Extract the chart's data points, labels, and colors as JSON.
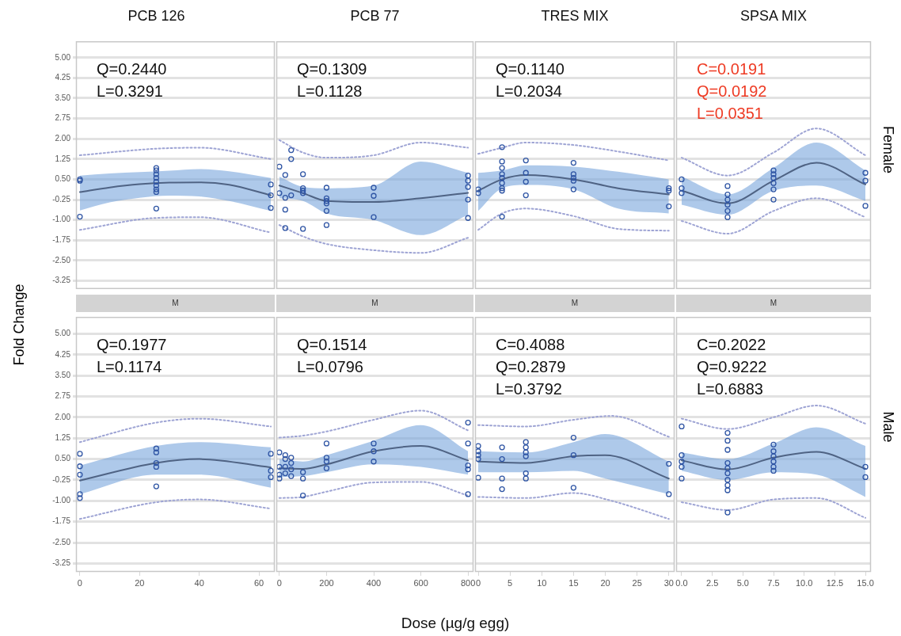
{
  "chart_data": [
    {
      "type": "scatter",
      "title": "PCB 126",
      "ylabel": "Fold Change",
      "xlim": [
        -1.3,
        65.3
      ],
      "xticks": [
        0,
        20,
        40,
        60
      ],
      "ylim": [
        -3.55,
        5.6
      ],
      "yticks": [
        {
          "value": 5,
          "label": "5.00"
        },
        {
          "value": 4.25,
          "label": "4.25"
        },
        {
          "value": 3.5,
          "label": "3.50"
        },
        {
          "value": 2.75,
          "label": "2.75"
        },
        {
          "value": 2,
          "label": "2.00"
        },
        {
          "value": 1.25,
          "label": "1.25"
        },
        {
          "value": 0.5,
          "label": "0.50"
        },
        {
          "value": -0.25,
          "label": "-0.25"
        },
        {
          "value": -1,
          "label": "-1.00"
        },
        {
          "value": -1.75,
          "label": "-1.75"
        },
        {
          "value": -2.5,
          "label": "-2.50"
        },
        {
          "value": -3.25,
          "label": "-3.25"
        }
      ],
      "tick_labels": "y",
      "grid": "y",
      "annotations": [
        "Q=0.2440",
        "L=0.3291"
      ],
      "series": [
        {
          "marker": "circle",
          "color": "#2f55a4",
          "x": [
            0,
            0,
            0,
            25.6,
            25.6,
            25.6,
            25.6,
            25.6,
            25.6,
            25.6,
            25.6,
            25.6,
            64,
            64,
            64
          ],
          "values": [
            0.5,
            0.45,
            -0.88,
            0.92,
            0.83,
            0.69,
            0.55,
            0.41,
            0.27,
            0.13,
            0.03,
            -0.58,
            0.31,
            -0.09,
            -0.56
          ]
        },
        {
          "type": "line",
          "color": "#4f6384",
          "x": [
            0,
            10,
            20,
            30,
            40,
            50,
            64
          ],
          "values": [
            0.03,
            0.2,
            0.32,
            0.38,
            0.39,
            0.3,
            -0.09
          ],
          "lower": [
            -0.65,
            -0.35,
            -0.18,
            -0.1,
            -0.13,
            -0.3,
            -0.67
          ],
          "upper": [
            0.64,
            0.72,
            0.77,
            0.82,
            0.88,
            0.8,
            0.55
          ]
        },
        {
          "type": "line",
          "color": "#9ea4d4",
          "line_style": "dotted",
          "x": [
            0,
            25,
            40,
            64
          ],
          "values": [
            1.39,
            1.63,
            1.67,
            1.25
          ]
        },
        {
          "type": "line",
          "color": "#9ea4d4",
          "line_style": "dotted",
          "x": [
            0,
            25,
            40,
            64
          ],
          "values": [
            -1.37,
            -0.93,
            -0.9,
            -1.47
          ]
        }
      ]
    },
    {
      "type": "scatter",
      "title": "PCB 77",
      "xlim": [
        -13,
        823
      ],
      "xticks": [
        0,
        200,
        400,
        600,
        800
      ],
      "ylim": [
        -3.55,
        5.6
      ],
      "yticks": [
        5,
        4.25,
        3.5,
        2.75,
        2,
        1.25,
        0.5,
        -0.25,
        -1,
        -1.75,
        -2.5,
        -3.25
      ],
      "tick_labels": false,
      "grid": "y",
      "annotations": [
        "Q=0.1309",
        "L=0.1128"
      ],
      "series": [
        {
          "marker": "circle",
          "color": "#2f55a4",
          "x": [
            0,
            0,
            25,
            25,
            25,
            25,
            50,
            50,
            50,
            100,
            100,
            100,
            100,
            100,
            200,
            200,
            200,
            200,
            200,
            200,
            400,
            400,
            400,
            800,
            800,
            800,
            800,
            800
          ],
          "values": [
            0.97,
            -0.01,
            0.66,
            -0.18,
            -0.62,
            -1.3,
            1.58,
            1.25,
            -0.09,
            0.69,
            0.17,
            0.08,
            -0.01,
            -1.33,
            0.19,
            -0.2,
            -0.3,
            -0.39,
            -0.67,
            -1.19,
            0.19,
            -0.11,
            -0.9,
            0.64,
            0.45,
            0.22,
            -0.25,
            -0.93
          ]
        },
        {
          "type": "line",
          "color": "#4f6384",
          "x": [
            0,
            100,
            200,
            400,
            600,
            800
          ],
          "values": [
            0.27,
            -0.01,
            -0.3,
            -0.34,
            -0.2,
            0
          ],
          "lower": [
            -0.2,
            -0.3,
            -0.76,
            -1,
            -1.56,
            -0.81
          ],
          "upper": [
            0.6,
            0.22,
            0.17,
            0.27,
            1.16,
            0.74
          ]
        },
        {
          "type": "line",
          "color": "#9ea4d4",
          "line_style": "dotted",
          "x": [
            0,
            100,
            200,
            400,
            600,
            800
          ],
          "values": [
            1.95,
            1.49,
            1.3,
            1.39,
            1.86,
            1.67
          ]
        },
        {
          "type": "line",
          "color": "#9ea4d4",
          "line_style": "dotted",
          "x": [
            0,
            100,
            200,
            400,
            600,
            800
          ],
          "values": [
            -1.19,
            -1.61,
            -1.89,
            -2.12,
            -2.22,
            -1.66
          ]
        }
      ]
    },
    {
      "type": "scatter",
      "title": "TRES MIX",
      "xlim": [
        -0.5,
        30.9
      ],
      "xticks": [
        0,
        5,
        10,
        15,
        20,
        25,
        30
      ],
      "ylim": [
        -3.55,
        5.6
      ],
      "yticks": [
        5,
        4.25,
        3.5,
        2.75,
        2,
        1.25,
        0.5,
        -0.25,
        -1,
        -1.75,
        -2.5,
        -3.25
      ],
      "tick_labels": false,
      "grid": "y",
      "annotations": [
        "Q=0.1140",
        "L=0.2034"
      ],
      "series": [
        {
          "marker": "circle",
          "color": "#2f55a4",
          "x": [
            0,
            0,
            3.75,
            3.75,
            3.75,
            3.75,
            3.75,
            3.75,
            3.75,
            3.75,
            3.75,
            7.5,
            7.5,
            7.5,
            7.5,
            15,
            15,
            15,
            15,
            15,
            30,
            30,
            30
          ],
          "values": [
            0.13,
            -0.01,
            1.69,
            1.16,
            0.92,
            0.69,
            0.55,
            0.36,
            0.17,
            0.08,
            -0.88,
            1.2,
            0.74,
            0.41,
            -0.09,
            1.11,
            0.69,
            0.55,
            0.45,
            0.13,
            0.17,
            0.08,
            -0.5
          ]
        },
        {
          "type": "line",
          "color": "#4f6384",
          "x": [
            0,
            3.75,
            7.5,
            15,
            22,
            30
          ],
          "values": [
            0.08,
            0.5,
            0.66,
            0.5,
            0.17,
            -0.06
          ],
          "lower": [
            -0.67,
            0.17,
            0.29,
            0.13,
            -0.58,
            -0.76
          ],
          "upper": [
            0.74,
            0.83,
            1.02,
            0.97,
            0.78,
            0.5
          ]
        },
        {
          "type": "line",
          "color": "#9ea4d4",
          "line_style": "dotted",
          "x": [
            0,
            3.75,
            7.5,
            15,
            22,
            30
          ],
          "values": [
            1.44,
            1.67,
            1.86,
            1.77,
            1.53,
            1.2
          ]
        },
        {
          "type": "line",
          "color": "#9ea4d4",
          "line_style": "dotted",
          "x": [
            0,
            3.75,
            7.5,
            15,
            22,
            30
          ],
          "values": [
            -1.37,
            -0.76,
            -0.58,
            -0.86,
            -1.33,
            -1.4
          ]
        }
      ]
    },
    {
      "type": "scatter",
      "title": "SPSA MIX",
      "y2label": "Female",
      "xlim": [
        -0.45,
        15.45
      ],
      "xticks": [
        0,
        2.5,
        5,
        7.5,
        10,
        12.5,
        15
      ],
      "ylim": [
        -3.55,
        5.6
      ],
      "yticks": [
        5,
        4.25,
        3.5,
        2.75,
        2,
        1.25,
        0.5,
        -0.25,
        -1,
        -1.75,
        -2.5,
        -3.25
      ],
      "tick_labels": false,
      "grid": "y",
      "annotations": [
        "C=0.0191",
        "Q=0.0192",
        "L=0.0351"
      ],
      "series": [
        {
          "marker": "circle",
          "color": "#2f55a4",
          "x": [
            0,
            0,
            0,
            3.75,
            3.75,
            3.75,
            3.75,
            3.75,
            3.75,
            7.5,
            7.5,
            7.5,
            7.5,
            7.5,
            7.5,
            15,
            15,
            15
          ],
          "values": [
            0.5,
            0.17,
            -0.01,
            0.25,
            -0.06,
            -0.25,
            -0.44,
            -0.67,
            -0.9,
            0.83,
            0.69,
            0.55,
            0.36,
            0.13,
            -0.25,
            0.74,
            0.45,
            -0.48
          ]
        },
        {
          "type": "line",
          "color": "#4f6384",
          "x": [
            0,
            3.75,
            7.5,
            11,
            15
          ],
          "values": [
            0.08,
            -0.39,
            0.45,
            1.11,
            0.31
          ],
          "lower": [
            -0.44,
            -0.81,
            0.08,
            0.27,
            -0.3
          ],
          "upper": [
            0.6,
            -0.06,
            0.92,
            1.86,
            0.83
          ]
        },
        {
          "type": "line",
          "color": "#9ea4d4",
          "line_style": "dotted",
          "x": [
            0,
            3.75,
            7.5,
            11,
            15
          ],
          "values": [
            1.3,
            0.64,
            1.49,
            2.38,
            1.39
          ]
        },
        {
          "type": "line",
          "color": "#9ea4d4",
          "line_style": "dotted",
          "x": [
            0,
            3.75,
            7.5,
            11,
            15
          ],
          "values": [
            -1.04,
            -1.51,
            -0.67,
            -0.2,
            -0.9
          ]
        }
      ]
    },
    {
      "type": "scatter",
      "subtitle": "M",
      "xlim": [
        -1.3,
        65.3
      ],
      "xticks": [
        0,
        20,
        40,
        60
      ],
      "ylim": [
        -3.55,
        5.6
      ],
      "yticks": [
        {
          "value": 5,
          "label": "5.00"
        },
        {
          "value": 4.25,
          "label": "4.25"
        },
        {
          "value": 3.5,
          "label": "3.50"
        },
        {
          "value": 2.75,
          "label": "2.75"
        },
        {
          "value": 2,
          "label": "2.00"
        },
        {
          "value": 1.25,
          "label": "1.25"
        },
        {
          "value": 0.5,
          "label": "0.50"
        },
        {
          "value": -0.25,
          "label": "-0.25"
        },
        {
          "value": -1,
          "label": "-1.00"
        },
        {
          "value": -1.75,
          "label": "-1.75"
        },
        {
          "value": -2.5,
          "label": "-2.50"
        },
        {
          "value": -3.25,
          "label": "-3.25"
        }
      ],
      "grid": "y",
      "annotations": [
        "Q=0.1977",
        "L=0.1174"
      ],
      "series": [
        {
          "marker": "circle",
          "color": "#2f55a4",
          "x": [
            0,
            0,
            0,
            0,
            0,
            25.6,
            25.6,
            25.6,
            25.6,
            25.6,
            64,
            64,
            64
          ],
          "values": [
            0.69,
            0.24,
            -0.06,
            -0.76,
            -0.9,
            0.88,
            0.74,
            0.36,
            0.22,
            -0.48,
            0.69,
            0.08,
            -0.15
          ]
        },
        {
          "type": "line",
          "color": "#4f6384",
          "x": [
            0,
            25.6,
            40,
            64
          ],
          "values": [
            -0.27,
            0.36,
            0.5,
            0.2
          ],
          "lower": [
            -0.76,
            -0.06,
            -0.06,
            -0.53
          ],
          "upper": [
            0.27,
            0.97,
            1.11,
            0.92
          ]
        },
        {
          "type": "line",
          "color": "#9ea4d4",
          "line_style": "dotted",
          "x": [
            0,
            25.6,
            40,
            64
          ],
          "values": [
            1.11,
            1.81,
            1.95,
            1.67
          ]
        },
        {
          "type": "line",
          "color": "#9ea4d4",
          "line_style": "dotted",
          "x": [
            0,
            25.6,
            40,
            64
          ],
          "values": [
            -1.65,
            -1.05,
            -0.95,
            -1.28
          ]
        }
      ]
    },
    {
      "type": "scatter",
      "subtitle": "M",
      "xlabel": "Dose (µg/g egg)",
      "xlim": [
        -13,
        823
      ],
      "xticks": [
        0,
        200,
        400,
        600,
        800
      ],
      "ylim": [
        -3.55,
        5.6
      ],
      "yticks": [
        5,
        4.25,
        3.5,
        2.75,
        2,
        1.25,
        0.5,
        -0.25,
        -1,
        -1.75,
        -2.5,
        -3.25
      ],
      "tick_labels": "x",
      "grid": "y",
      "annotations": [
        "Q=0.1514",
        "L=0.0796"
      ],
      "series": [
        {
          "marker": "circle",
          "color": "#2f55a4",
          "x": [
            0,
            0,
            0,
            0,
            25,
            25,
            25,
            25,
            50,
            50,
            50,
            50,
            100,
            100,
            100,
            200,
            200,
            200,
            200,
            400,
            400,
            400,
            800,
            800,
            800,
            800,
            800
          ],
          "values": [
            0.74,
            0.22,
            -0.06,
            -0.2,
            0.64,
            0.5,
            0.22,
            -0.01,
            0.55,
            0.36,
            0.13,
            -0.11,
            0.03,
            -0.2,
            -0.81,
            1.06,
            0.55,
            0.41,
            0.17,
            1.06,
            0.78,
            0.41,
            1.81,
            1.06,
            0.27,
            0.13,
            -0.76
          ]
        },
        {
          "type": "line",
          "color": "#4f6384",
          "x": [
            0,
            100,
            200,
            400,
            600,
            800
          ],
          "values": [
            0.17,
            0.15,
            0.31,
            0.78,
            0.97,
            0.45
          ],
          "lower": [
            -0.15,
            -0.11,
            0.03,
            0.31,
            0.22,
            -0.06
          ],
          "upper": [
            0.5,
            0.41,
            0.64,
            1.16,
            1.72,
            0.78
          ]
        },
        {
          "type": "line",
          "color": "#9ea4d4",
          "line_style": "dotted",
          "x": [
            0,
            100,
            200,
            400,
            600,
            800
          ],
          "values": [
            1.27,
            1.34,
            1.49,
            1.91,
            2.24,
            1.53
          ]
        },
        {
          "type": "line",
          "color": "#9ea4d4",
          "line_style": "dotted",
          "x": [
            0,
            100,
            200,
            400,
            600,
            800
          ],
          "values": [
            -0.9,
            -0.86,
            -0.67,
            -0.34,
            -0.32,
            -0.81
          ]
        }
      ]
    },
    {
      "type": "scatter",
      "subtitle": "M",
      "xlim": [
        -0.5,
        30.9
      ],
      "xticks": [
        0,
        5,
        10,
        15,
        20,
        25,
        30
      ],
      "ylim": [
        -3.55,
        5.6
      ],
      "yticks": [
        5,
        4.25,
        3.5,
        2.75,
        2,
        1.25,
        0.5,
        -0.25,
        -1,
        -1.75,
        -2.5,
        -3.25
      ],
      "tick_labels": "x",
      "grid": "y",
      "annotations": [
        "C=0.4088",
        "Q=0.2879",
        "L=0.3792"
      ],
      "series": [
        {
          "marker": "circle",
          "color": "#2f55a4",
          "x": [
            0,
            0,
            0,
            0,
            0,
            3.75,
            3.75,
            3.75,
            3.75,
            7.5,
            7.5,
            7.5,
            7.5,
            7.5,
            7.5,
            15,
            15,
            15,
            30,
            30
          ],
          "values": [
            0.97,
            0.78,
            0.64,
            0.5,
            -0.17,
            0.92,
            0.5,
            -0.2,
            -0.58,
            1.11,
            0.92,
            0.74,
            0.6,
            -0.01,
            -0.2,
            1.27,
            0.64,
            -0.53,
            0.33,
            -0.76
          ]
        },
        {
          "type": "line",
          "color": "#4f6384",
          "x": [
            0,
            7.5,
            15,
            20,
            30
          ],
          "values": [
            0.41,
            0.36,
            0.6,
            0.64,
            -0.2
          ],
          "lower": [
            0.03,
            0.03,
            0.08,
            -0.2,
            -0.76
          ],
          "upper": [
            0.78,
            0.74,
            1.11,
            1.4,
            0.41
          ]
        },
        {
          "type": "line",
          "color": "#9ea4d4",
          "line_style": "dotted",
          "x": [
            0,
            7.5,
            15,
            21,
            30
          ],
          "values": [
            1.72,
            1.67,
            1.91,
            2.05,
            1.3
          ]
        },
        {
          "type": "line",
          "color": "#9ea4d4",
          "line_style": "dotted",
          "x": [
            0,
            7.5,
            15,
            21,
            30
          ],
          "values": [
            -0.86,
            -0.9,
            -0.72,
            -1,
            -1.65
          ]
        }
      ]
    },
    {
      "type": "scatter",
      "subtitle": "M",
      "y2label": "Male",
      "xlim": [
        -0.45,
        15.45
      ],
      "xticks": [
        {
          "value": 0,
          "label": "0.0"
        },
        {
          "value": 2.5,
          "label": "2.5"
        },
        {
          "value": 5,
          "label": "5.0"
        },
        {
          "value": 7.5,
          "label": "7.5"
        },
        {
          "value": 10,
          "label": "10.0"
        },
        {
          "value": 12.5,
          "label": "12.5"
        },
        {
          "value": 15,
          "label": "15.0"
        }
      ],
      "ylim": [
        -3.55,
        5.6
      ],
      "yticks": [
        5,
        4.25,
        3.5,
        2.75,
        2,
        1.25,
        0.5,
        -0.25,
        -1,
        -1.75,
        -2.5,
        -3.25
      ],
      "tick_labels": "x",
      "grid": "y",
      "annotations": [
        "C=0.2022",
        "Q=0.9222",
        "L=0.6883"
      ],
      "series": [
        {
          "marker": "circle",
          "color": "#2f55a4",
          "x": [
            0,
            0,
            0,
            0,
            0,
            3.75,
            3.75,
            3.75,
            3.75,
            3.75,
            3.75,
            3.75,
            3.75,
            3.75,
            3.75,
            7.5,
            7.5,
            7.5,
            7.5,
            7.5,
            7.5,
            15,
            15
          ],
          "values": [
            1.67,
            0.64,
            0.41,
            0.22,
            -0.2,
            1.44,
            1.16,
            0.83,
            0.36,
            0.17,
            -0.01,
            -0.25,
            -0.44,
            -0.62,
            -1.42,
            1.02,
            0.78,
            0.6,
            0.41,
            0.22,
            0.08,
            0.22,
            -0.15
          ]
        },
        {
          "type": "line",
          "color": "#4f6384",
          "x": [
            0,
            3.75,
            7.5,
            11,
            15
          ],
          "values": [
            0.45,
            0.13,
            0.55,
            0.76,
            0.15
          ],
          "lower": [
            0.08,
            -0.25,
            0.03,
            -0.06,
            -0.86
          ],
          "upper": [
            0.74,
            0.5,
            1.06,
            1.64,
            0.97
          ]
        },
        {
          "type": "line",
          "color": "#9ea4d4",
          "line_style": "dotted",
          "x": [
            0,
            3.75,
            7.5,
            11,
            15
          ],
          "values": [
            1.95,
            1.58,
            2,
            2.42,
            1.77
          ]
        },
        {
          "type": "line",
          "color": "#9ea4d4",
          "line_style": "dotted",
          "x": [
            0,
            3.75,
            7.5,
            11,
            15
          ],
          "values": [
            -1.05,
            -1.33,
            -0.95,
            -0.9,
            -1.61
          ]
        }
      ]
    }
  ]
}
